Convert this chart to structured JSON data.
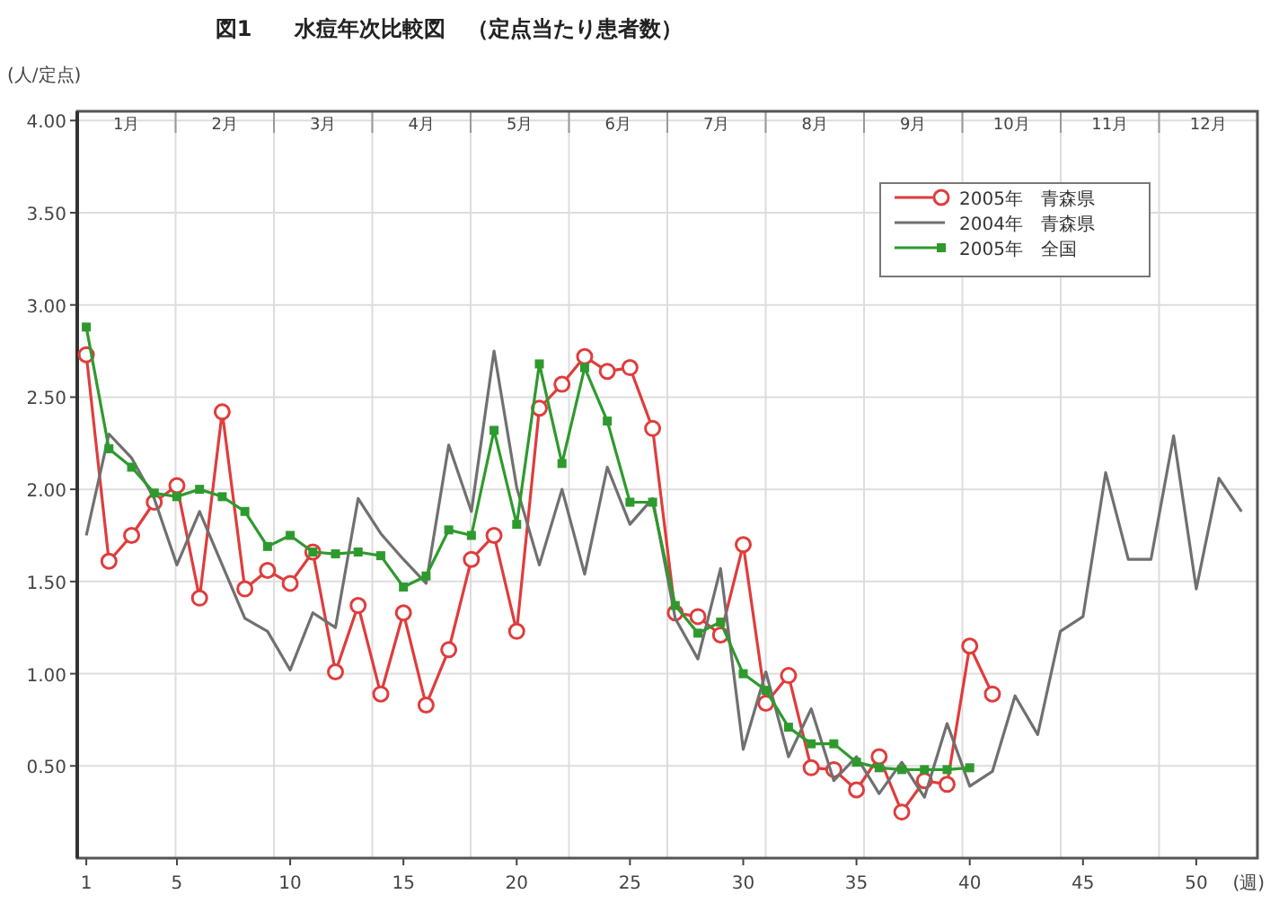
{
  "chart_data": {
    "type": "line",
    "title": "図1　　水痘年次比較図　（定点当たり患者数）",
    "ylabel": "(人/定点)",
    "xlabel": "(週)",
    "xlim": [
      0.6,
      52.7
    ],
    "xticks": [
      1,
      5,
      10,
      15,
      20,
      25,
      30,
      35,
      40,
      45,
      50
    ],
    "ylim": [
      0,
      4.05
    ],
    "yticks": [
      {
        "value": 0.5,
        "label": "0.50"
      },
      {
        "value": 1,
        "label": "1.00"
      },
      {
        "value": 1.5,
        "label": "1.50"
      },
      {
        "value": 2,
        "label": "2.00"
      },
      {
        "value": 2.5,
        "label": "2.50"
      },
      {
        "value": 3,
        "label": "3.00"
      },
      {
        "value": 3.5,
        "label": "3.50"
      },
      {
        "value": 4,
        "label": "4.00"
      }
    ],
    "annotations": [
      "1月",
      "2月",
      "3月",
      "4月",
      "5月",
      "6月",
      "7月",
      "8月",
      "9月",
      "10月",
      "11月",
      "12月"
    ],
    "grid": true,
    "legend": "top right",
    "series": [
      {
        "name": "2005年　青森県",
        "color": "#e03c3c",
        "marker": "circle",
        "x": [
          1,
          2,
          3,
          4,
          5,
          6,
          7,
          8,
          9,
          10,
          11,
          12,
          13,
          14,
          15,
          16,
          17,
          18,
          19,
          20,
          21,
          22,
          23,
          24,
          25,
          26,
          27,
          28,
          29,
          30,
          31,
          32,
          33,
          34,
          35,
          36,
          37,
          38,
          39,
          40,
          41
        ],
        "values": [
          2.73,
          1.61,
          1.75,
          1.93,
          2.02,
          1.41,
          2.42,
          1.46,
          1.56,
          1.49,
          1.66,
          1.01,
          1.37,
          0.89,
          1.33,
          0.83,
          1.13,
          1.62,
          1.75,
          1.23,
          2.44,
          2.57,
          2.72,
          2.64,
          2.66,
          2.33,
          1.33,
          1.31,
          1.21,
          1.7,
          0.84,
          0.99,
          0.49,
          0.48,
          0.37,
          0.55,
          0.25,
          0.42,
          0.4,
          1.15,
          0.89
        ]
      },
      {
        "name": "2004年　青森県",
        "color": "#707070",
        "marker": "none",
        "x": [
          1,
          2,
          3,
          4,
          5,
          6,
          7,
          8,
          9,
          10,
          11,
          12,
          13,
          14,
          15,
          16,
          17,
          18,
          19,
          20,
          21,
          22,
          23,
          24,
          25,
          26,
          27,
          28,
          29,
          30,
          31,
          32,
          33,
          34,
          35,
          36,
          37,
          38,
          39,
          40,
          41,
          42,
          43,
          44,
          45,
          46,
          47,
          48,
          49,
          50,
          51,
          52
        ],
        "values": [
          1.75,
          2.3,
          2.17,
          1.95,
          1.59,
          1.88,
          1.59,
          1.3,
          1.23,
          1.02,
          1.33,
          1.25,
          1.95,
          1.76,
          1.62,
          1.49,
          2.24,
          1.88,
          2.75,
          2.01,
          1.59,
          2.0,
          1.54,
          2.12,
          1.81,
          1.95,
          1.3,
          1.08,
          1.57,
          0.59,
          1.01,
          0.55,
          0.81,
          0.42,
          0.55,
          0.35,
          0.52,
          0.33,
          0.73,
          0.39,
          0.47,
          0.88,
          0.67,
          1.23,
          1.31,
          2.09,
          1.62,
          1.62,
          2.29,
          1.46,
          2.06,
          1.88
        ]
      },
      {
        "name": "2005年　全国",
        "color": "#2e9a2e",
        "marker": "square",
        "x": [
          1,
          2,
          3,
          4,
          5,
          6,
          7,
          8,
          9,
          10,
          11,
          12,
          13,
          14,
          15,
          16,
          17,
          18,
          19,
          20,
          21,
          22,
          23,
          24,
          25,
          26,
          27,
          28,
          29,
          30,
          31,
          32,
          33,
          34,
          35,
          36,
          37,
          38,
          39,
          40
        ],
        "values": [
          2.88,
          2.22,
          2.12,
          1.98,
          1.96,
          2.0,
          1.96,
          1.88,
          1.69,
          1.75,
          1.66,
          1.65,
          1.66,
          1.64,
          1.47,
          1.53,
          1.78,
          1.75,
          2.32,
          1.81,
          2.68,
          2.14,
          2.66,
          2.37,
          1.93,
          1.93,
          1.37,
          1.22,
          1.28,
          1.0,
          0.91,
          0.71,
          0.62,
          0.62,
          0.52,
          0.49,
          0.48,
          0.48,
          0.48,
          0.49
        ]
      }
    ]
  }
}
